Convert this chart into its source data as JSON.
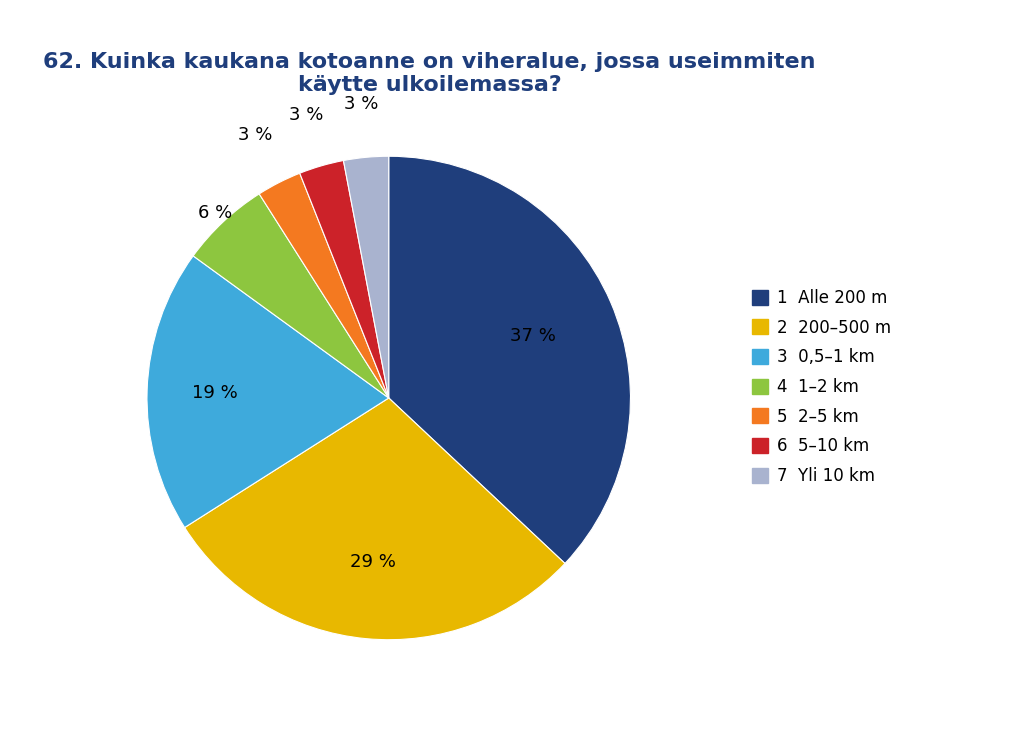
{
  "title": "62. Kuinka kaukana kotoanne on viheralue, jossa useimmiten\nkäytte ulkoilemassa?",
  "slices": [
    37,
    29,
    19,
    6,
    3,
    3,
    3
  ],
  "pct_labels": [
    "37 %",
    "29 %",
    "19 %",
    "6 %",
    "3 %",
    "3 %",
    "3 %"
  ],
  "colors": [
    "#1F3E7C",
    "#E8B800",
    "#3EAADC",
    "#8DC63F",
    "#F47920",
    "#CC2229",
    "#A9B3CF"
  ],
  "legend_labels": [
    "1  Alle 200 m",
    "2  200–500 m",
    "3  0,5–1 km",
    "4  1–2 km",
    "5  2–5 km",
    "6  5–10 km",
    "7  Yli 10 km"
  ],
  "background_color": "#FFFFFF",
  "title_fontsize": 16,
  "title_color": "#1F3E7C",
  "label_radii": [
    0.65,
    0.68,
    0.72,
    1.05,
    1.22,
    1.22,
    1.22
  ],
  "label_fontsize": 13
}
